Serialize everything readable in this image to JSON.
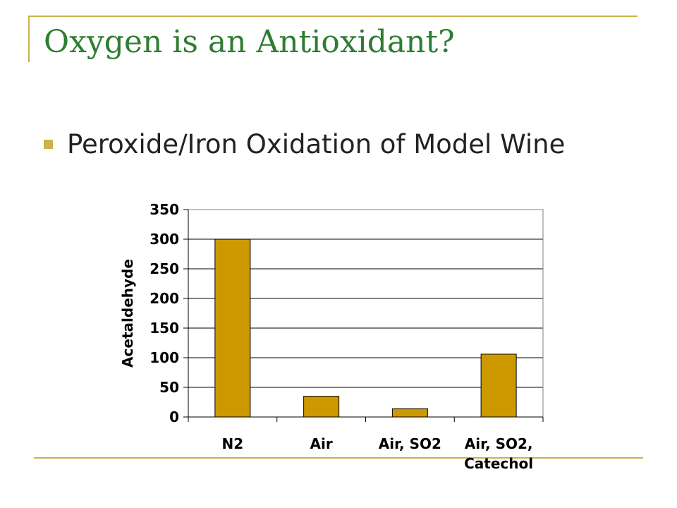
{
  "slide": {
    "title": "Oxygen is an Antioxidant?",
    "bullet": "Peroxide/Iron Oxidation of Model Wine",
    "accent_color": "#c9b34a",
    "title_color": "#2e7d32"
  },
  "chart_data": {
    "type": "bar",
    "title": "",
    "xlabel": "",
    "ylabel": "Acetaldehyde",
    "categories": [
      [
        "N2"
      ],
      [
        "Air"
      ],
      [
        "Air, SO2"
      ],
      [
        "Air, SO2,",
        "Catechol"
      ]
    ],
    "values": [
      300,
      35,
      14,
      106
    ],
    "ylim": [
      0,
      350
    ],
    "yticks": [
      0,
      50,
      100,
      150,
      200,
      250,
      300,
      350
    ],
    "grid": true,
    "legend": "none",
    "bar_color": "#cc9900"
  }
}
